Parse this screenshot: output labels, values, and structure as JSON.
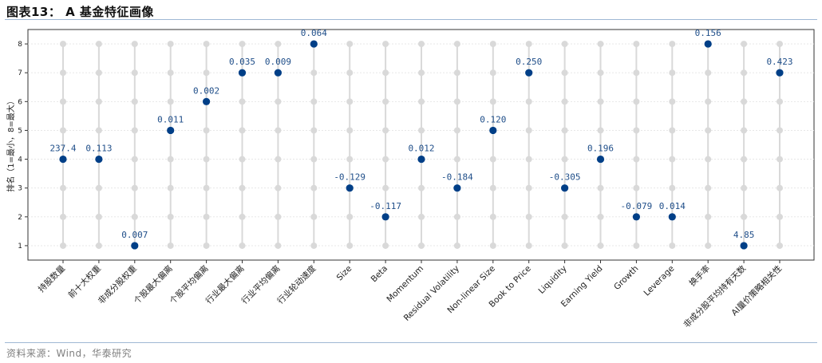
{
  "figure": {
    "title": "图表13： A 基金特征画像",
    "source": "资料来源：Wind，华泰研究"
  },
  "colors": {
    "point": "#003f87",
    "background_point": "#d9d9d9",
    "stem": "#d9d9d9",
    "label": "#1f4e89",
    "rule": "#9fb8d4"
  },
  "chart_data": {
    "type": "scatter",
    "title": "",
    "xlabel": "",
    "ylabel": "排名（1=最小，8=最大）",
    "ylim": [
      0.5,
      8.5
    ],
    "yticks": [
      1,
      2,
      3,
      4,
      5,
      6,
      7,
      8
    ],
    "grid": "horizontal dashed",
    "background_rank_levels": [
      1,
      2,
      3,
      4,
      5,
      6,
      7,
      8
    ],
    "categories": [
      "持股数量",
      "前十大权重",
      "非成分股权重",
      "个股最大偏离",
      "个股平均偏离",
      "行业最大偏离",
      "行业平均偏离",
      "行业轮动速度",
      "Size",
      "Beta",
      "Momentum",
      "Residual Volatility",
      "Non-linear Size",
      "Book to Price",
      "Liquidity",
      "Earning Yield",
      "Growth",
      "Leverage",
      "换手率",
      "非成分股平均持有天数",
      "AI量价策略相关性"
    ],
    "ranks": [
      4,
      4,
      1,
      5,
      6,
      7,
      7,
      8,
      3,
      2,
      4,
      3,
      5,
      7,
      3,
      4,
      2,
      2,
      8,
      1,
      7
    ],
    "labels": [
      "237.4",
      "0.113",
      "0.007",
      "0.011",
      "0.002",
      "0.035",
      "0.009",
      "0.064",
      "-0.129",
      "-0.117",
      "0.012",
      "-0.184",
      "0.120",
      "0.250",
      "-0.305",
      "0.196",
      "-0.079",
      "0.014",
      "0.156",
      "4.85",
      "0.423"
    ]
  }
}
